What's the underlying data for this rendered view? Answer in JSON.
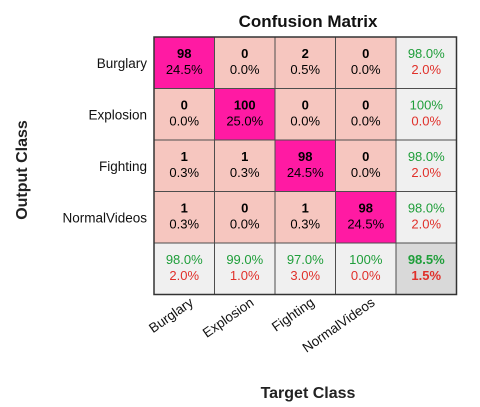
{
  "chart_data": {
    "type": "heatmap",
    "title": "Confusion Matrix",
    "xlabel": "Target Class",
    "ylabel": "Output Class",
    "classes": [
      "Burglary",
      "Explosion",
      "Fighting",
      "NormalVideos"
    ],
    "matrix": [
      [
        98,
        0,
        2,
        0
      ],
      [
        0,
        100,
        0,
        0
      ],
      [
        1,
        1,
        98,
        0
      ],
      [
        1,
        0,
        1,
        98
      ]
    ],
    "cell_percent": [
      [
        "24.5%",
        "0.0%",
        "0.5%",
        "0.0%"
      ],
      [
        "0.0%",
        "25.0%",
        "0.0%",
        "0.0%"
      ],
      [
        "0.3%",
        "0.3%",
        "24.5%",
        "0.0%"
      ],
      [
        "0.3%",
        "0.0%",
        "0.3%",
        "24.5%"
      ]
    ],
    "row_summary": [
      {
        "correct": "98.0%",
        "error": "2.0%"
      },
      {
        "correct": "100%",
        "error": "0.0%"
      },
      {
        "correct": "98.0%",
        "error": "2.0%"
      },
      {
        "correct": "98.0%",
        "error": "2.0%"
      }
    ],
    "col_summary": [
      {
        "correct": "98.0%",
        "error": "2.0%"
      },
      {
        "correct": "99.0%",
        "error": "1.0%"
      },
      {
        "correct": "97.0%",
        "error": "3.0%"
      },
      {
        "correct": "100%",
        "error": "0.0%"
      }
    ],
    "overall": {
      "correct": "98.5%",
      "error": "1.5%"
    },
    "grid": true,
    "colors": {
      "diagonal": "#ff1aa3",
      "off_diagonal": "#f6c6bf",
      "summary": "#f0f0f0",
      "overall": "#d9d9d9",
      "correct_text": "#1f9e3a",
      "error_text": "#e0302a",
      "text": "#000000"
    }
  }
}
